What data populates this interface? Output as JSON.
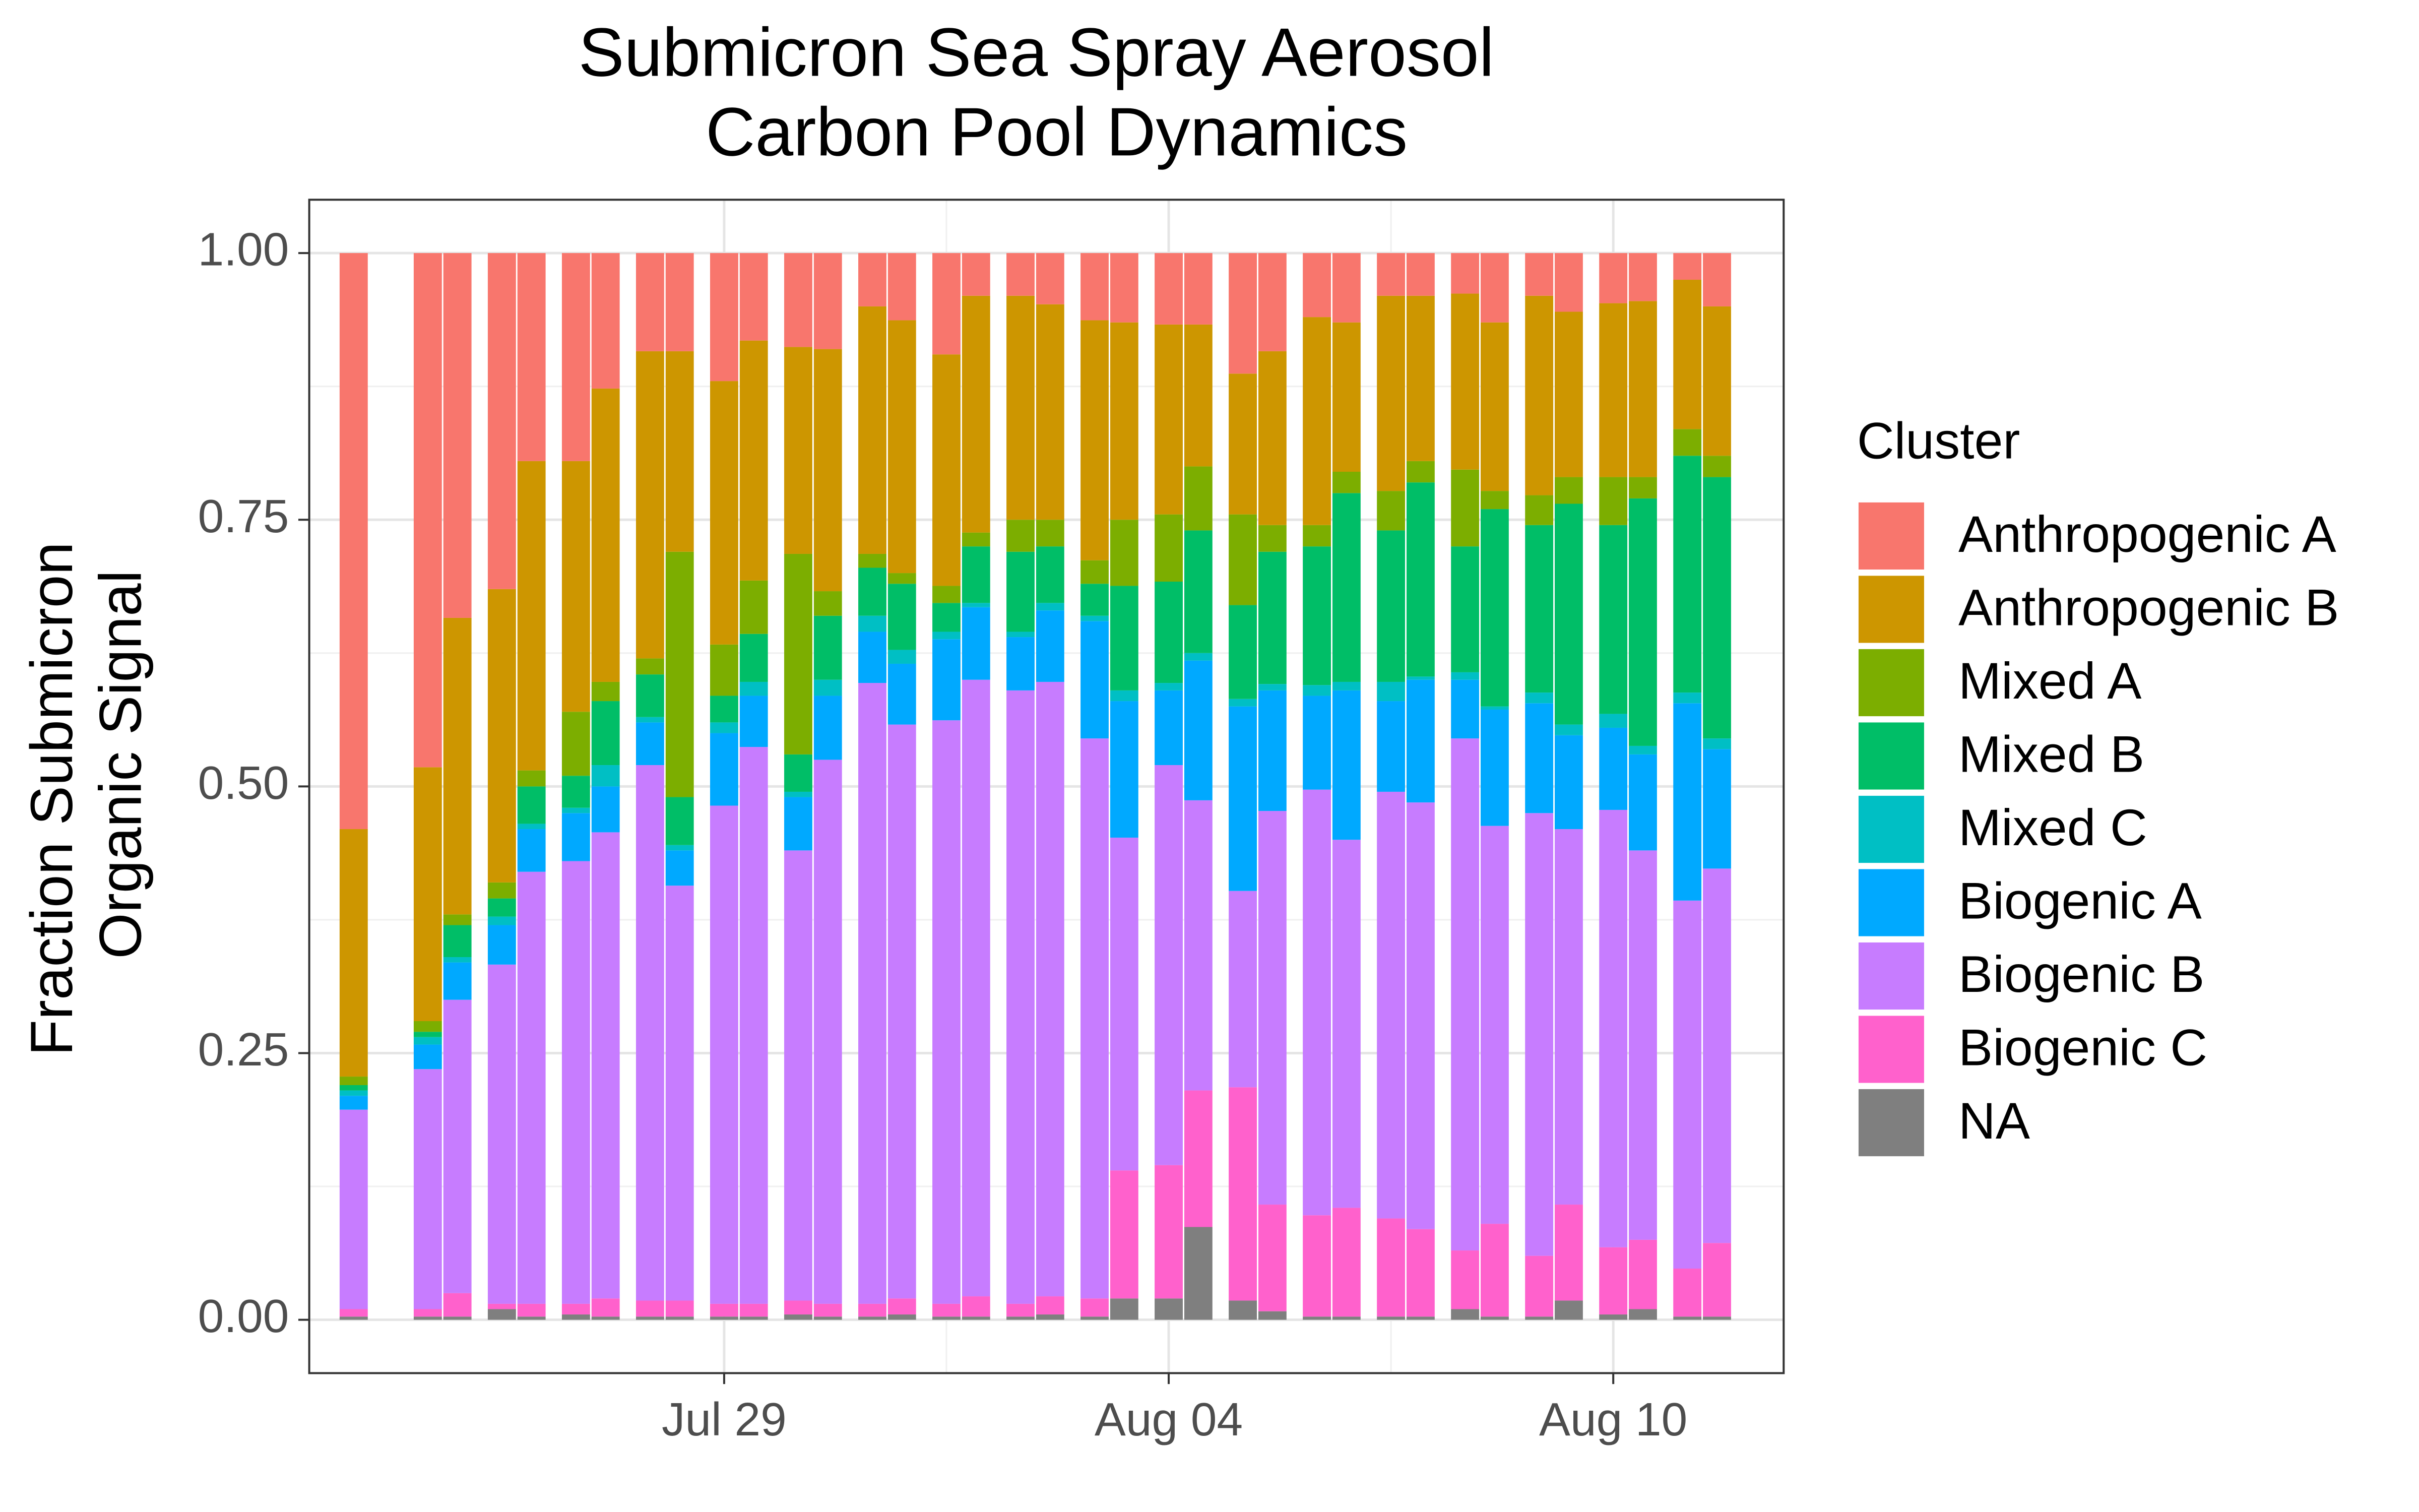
{
  "chart_data": {
    "type": "stacked-bar",
    "title": [
      "Submicron Sea Spray Aerosol",
      "Carbon Pool Dynamics"
    ],
    "y_label": [
      "Fraction Submicron",
      "Organic Signal"
    ],
    "legend_title": "Cluster",
    "legend_position": "right",
    "grid": true,
    "x": [
      "Jul 24",
      "Jul 25",
      "Jul 25",
      "Jul 26",
      "Jul 26",
      "Jul 27",
      "Jul 27",
      "Jul 28",
      "Jul 28",
      "Jul 29",
      "Jul 29",
      "Jul 30",
      "Jul 30",
      "Jul 31",
      "Jul 31",
      "Aug 01",
      "Aug 01",
      "Aug 02",
      "Aug 02",
      "Aug 03",
      "Aug 03",
      "Aug 04",
      "Aug 04",
      "Aug 05",
      "Aug 05",
      "Aug 06",
      "Aug 06",
      "Aug 07",
      "Aug 07",
      "Aug 08",
      "Aug 08",
      "Aug 09",
      "Aug 09",
      "Aug 10",
      "Aug 10",
      "Aug 11",
      "Aug 11"
    ],
    "xticks": [
      "Jul 29",
      "Aug 04",
      "Aug 10"
    ],
    "ylim": [
      -0.05,
      1.05
    ],
    "yticks": [
      {
        "value": 0,
        "label": "0.00"
      },
      {
        "value": 0.25,
        "label": "0.25"
      },
      {
        "value": 0.5,
        "label": "0.50"
      },
      {
        "value": 0.75,
        "label": "0.75"
      },
      {
        "value": 1,
        "label": "1.00"
      }
    ],
    "series": [
      {
        "name": "Anthropogenic A",
        "color": "#F8766D",
        "values": [
          0.54,
          0.482,
          0.342,
          0.315,
          0.195,
          0.195,
          0.127,
          0.092,
          0.092,
          0.12,
          0.082,
          0.088,
          0.09,
          0.05,
          0.063,
          0.095,
          0.04,
          0.04,
          0.048,
          0.063,
          0.065,
          0.067,
          0.067,
          0.113,
          0.092,
          0.06,
          0.065,
          0.04,
          0.04,
          0.038,
          0.065,
          0.04,
          0.055,
          0.047,
          0.045,
          0.025,
          0.05
        ]
      },
      {
        "name": "Anthropogenic B",
        "color": "#CD9600",
        "values": [
          0.232,
          0.238,
          0.278,
          0.275,
          0.29,
          0.235,
          0.275,
          0.288,
          0.188,
          0.247,
          0.225,
          0.194,
          0.227,
          0.232,
          0.237,
          0.217,
          0.222,
          0.21,
          0.202,
          0.225,
          0.185,
          0.178,
          0.133,
          0.132,
          0.163,
          0.195,
          0.14,
          0.183,
          0.155,
          0.165,
          0.158,
          0.187,
          0.155,
          0.163,
          0.165,
          0.14,
          0.14
        ]
      },
      {
        "name": "Mixed A",
        "color": "#7CAE00",
        "values": [
          0.008,
          0.01,
          0.01,
          0.015,
          0.015,
          0.06,
          0.018,
          0.015,
          0.23,
          0.048,
          0.05,
          0.188,
          0.023,
          0.013,
          0.01,
          0.016,
          0.013,
          0.03,
          0.025,
          0.022,
          0.062,
          0.063,
          0.06,
          0.085,
          0.025,
          0.02,
          0.02,
          0.037,
          0.02,
          0.072,
          0.017,
          0.028,
          0.025,
          0.045,
          0.02,
          0.025,
          0.02
        ]
      },
      {
        "name": "Mixed B",
        "color": "#00BE67",
        "values": [
          0.005,
          0.005,
          0.03,
          0.017,
          0.035,
          0.03,
          0.06,
          0.04,
          0.045,
          0.025,
          0.045,
          0.035,
          0.06,
          0.045,
          0.062,
          0.027,
          0.053,
          0.075,
          0.053,
          0.03,
          0.098,
          0.095,
          0.115,
          0.088,
          0.124,
          0.13,
          0.177,
          0.142,
          0.182,
          0.118,
          0.185,
          0.157,
          0.207,
          0.177,
          0.232,
          0.222,
          0.245
        ]
      },
      {
        "name": "Mixed C",
        "color": "#00BFC4",
        "values": [
          0.005,
          0.007,
          0.005,
          0.008,
          0.005,
          0.005,
          0.02,
          0.005,
          0.005,
          0.01,
          0.013,
          0.005,
          0.015,
          0.015,
          0.013,
          0.007,
          0.004,
          0.005,
          0.007,
          0.005,
          0.01,
          0.007,
          0.007,
          0.007,
          0.006,
          0.01,
          0.008,
          0.018,
          0.003,
          0.007,
          0.003,
          0.01,
          0.01,
          0.013,
          0.008,
          0.01,
          0.01
        ]
      },
      {
        "name": "Biogenic A",
        "color": "#00A9FF",
        "values": [
          0.013,
          0.023,
          0.035,
          0.037,
          0.04,
          0.045,
          0.043,
          0.04,
          0.033,
          0.068,
          0.048,
          0.05,
          0.06,
          0.048,
          0.057,
          0.076,
          0.068,
          0.05,
          0.067,
          0.11,
          0.128,
          0.07,
          0.131,
          0.173,
          0.113,
          0.088,
          0.14,
          0.085,
          0.115,
          0.055,
          0.109,
          0.103,
          0.088,
          0.077,
          0.09,
          0.185,
          0.112
        ]
      },
      {
        "name": "Biogenic B",
        "color": "#C77CFF",
        "values": [
          0.187,
          0.225,
          0.275,
          0.318,
          0.405,
          0.415,
          0.437,
          0.502,
          0.389,
          0.467,
          0.522,
          0.422,
          0.51,
          0.582,
          0.538,
          0.547,
          0.578,
          0.575,
          0.576,
          0.525,
          0.312,
          0.375,
          0.272,
          0.184,
          0.369,
          0.399,
          0.345,
          0.4,
          0.4,
          0.48,
          0.373,
          0.415,
          0.352,
          0.41,
          0.365,
          0.345,
          0.351
        ]
      },
      {
        "name": "Biogenic C",
        "color": "#FF61CC",
        "values": [
          0.007,
          0.007,
          0.022,
          0.005,
          0.012,
          0.01,
          0.017,
          0.015,
          0.015,
          0.012,
          0.012,
          0.013,
          0.012,
          0.012,
          0.015,
          0.012,
          0.019,
          0.012,
          0.017,
          0.017,
          0.12,
          0.125,
          0.128,
          0.2,
          0.1,
          0.095,
          0.102,
          0.092,
          0.082,
          0.055,
          0.087,
          0.057,
          0.09,
          0.063,
          0.065,
          0.045,
          0.069
        ]
      },
      {
        "name": "NA",
        "color": "#7F7F7F",
        "values": [
          0.003,
          0.003,
          0.003,
          0.01,
          0.003,
          0.005,
          0.003,
          0.003,
          0.003,
          0.003,
          0.003,
          0.005,
          0.003,
          0.003,
          0.005,
          0.003,
          0.003,
          0.003,
          0.005,
          0.003,
          0.02,
          0.02,
          0.087,
          0.018,
          0.008,
          0.003,
          0.003,
          0.003,
          0.003,
          0.01,
          0.003,
          0.003,
          0.018,
          0.005,
          0.01,
          0.003,
          0.003
        ]
      }
    ]
  }
}
